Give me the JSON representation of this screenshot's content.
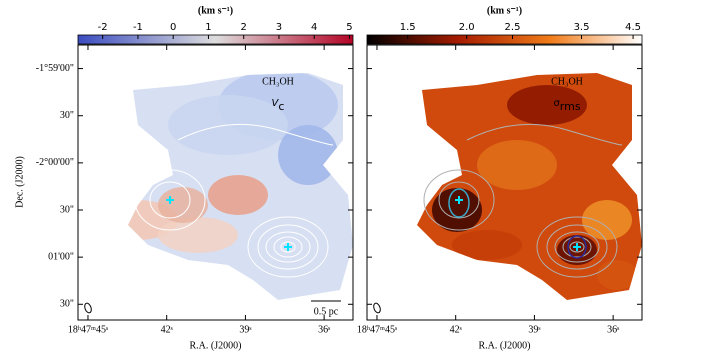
{
  "panels": [
    {
      "colorbar": {
        "units": "(km s⁻¹)",
        "lim": [
          -2.7,
          5.1
        ],
        "ticks": [
          -2,
          -1,
          0,
          1,
          2,
          3,
          4,
          5
        ],
        "scale": "linear",
        "colors": [
          "#3b4cc0",
          "#dddddd",
          "#b40426"
        ]
      },
      "molecule": "CH₃OH",
      "quantity": "V",
      "quantity_sub": "c",
      "scale_bar": "0.5 pc",
      "contour_color": "#ffffff"
    },
    {
      "colorbar": {
        "units": "(km s⁻¹)",
        "lim": [
          1.23,
          4.7
        ],
        "ticks": [
          1.5,
          {
            "value": 2,
            "label": "2.0"
          },
          2.5,
          3.5,
          4.5
        ],
        "scale": "log",
        "colors": [
          "#000000",
          "#a61c00",
          "#f07c1a",
          "#ffffff"
        ]
      },
      "molecule": "CH₃OH",
      "quantity": "σ",
      "quantity_sub": "rms",
      "contour_color": "#b0b0b0"
    }
  ],
  "x_axis": {
    "label": "R.A. (J2000)",
    "lim": [
      45.38,
      34.9
    ],
    "ticks": [
      {
        "value": 45,
        "label": "18ʰ47ᵐ45ˢ"
      },
      {
        "value": 42,
        "label": "42ˢ"
      },
      {
        "value": 39,
        "label": "39ˢ"
      },
      {
        "value": 36,
        "label": "36ˢ"
      }
    ]
  },
  "y_axis": {
    "label": "Dec. (J2000)",
    "lim": [
      -7300,
      -7125
    ],
    "ticks": [
      {
        "value": -7140,
        "label": "-1°59'00\""
      },
      {
        "value": -7170,
        "label": "30\""
      },
      {
        "value": -7200,
        "label": "-2°00'00\""
      },
      {
        "value": -7230,
        "label": "30\""
      },
      {
        "value": -7260,
        "label": "01'00\""
      },
      {
        "value": -7290,
        "label": "30\""
      }
    ]
  }
}
